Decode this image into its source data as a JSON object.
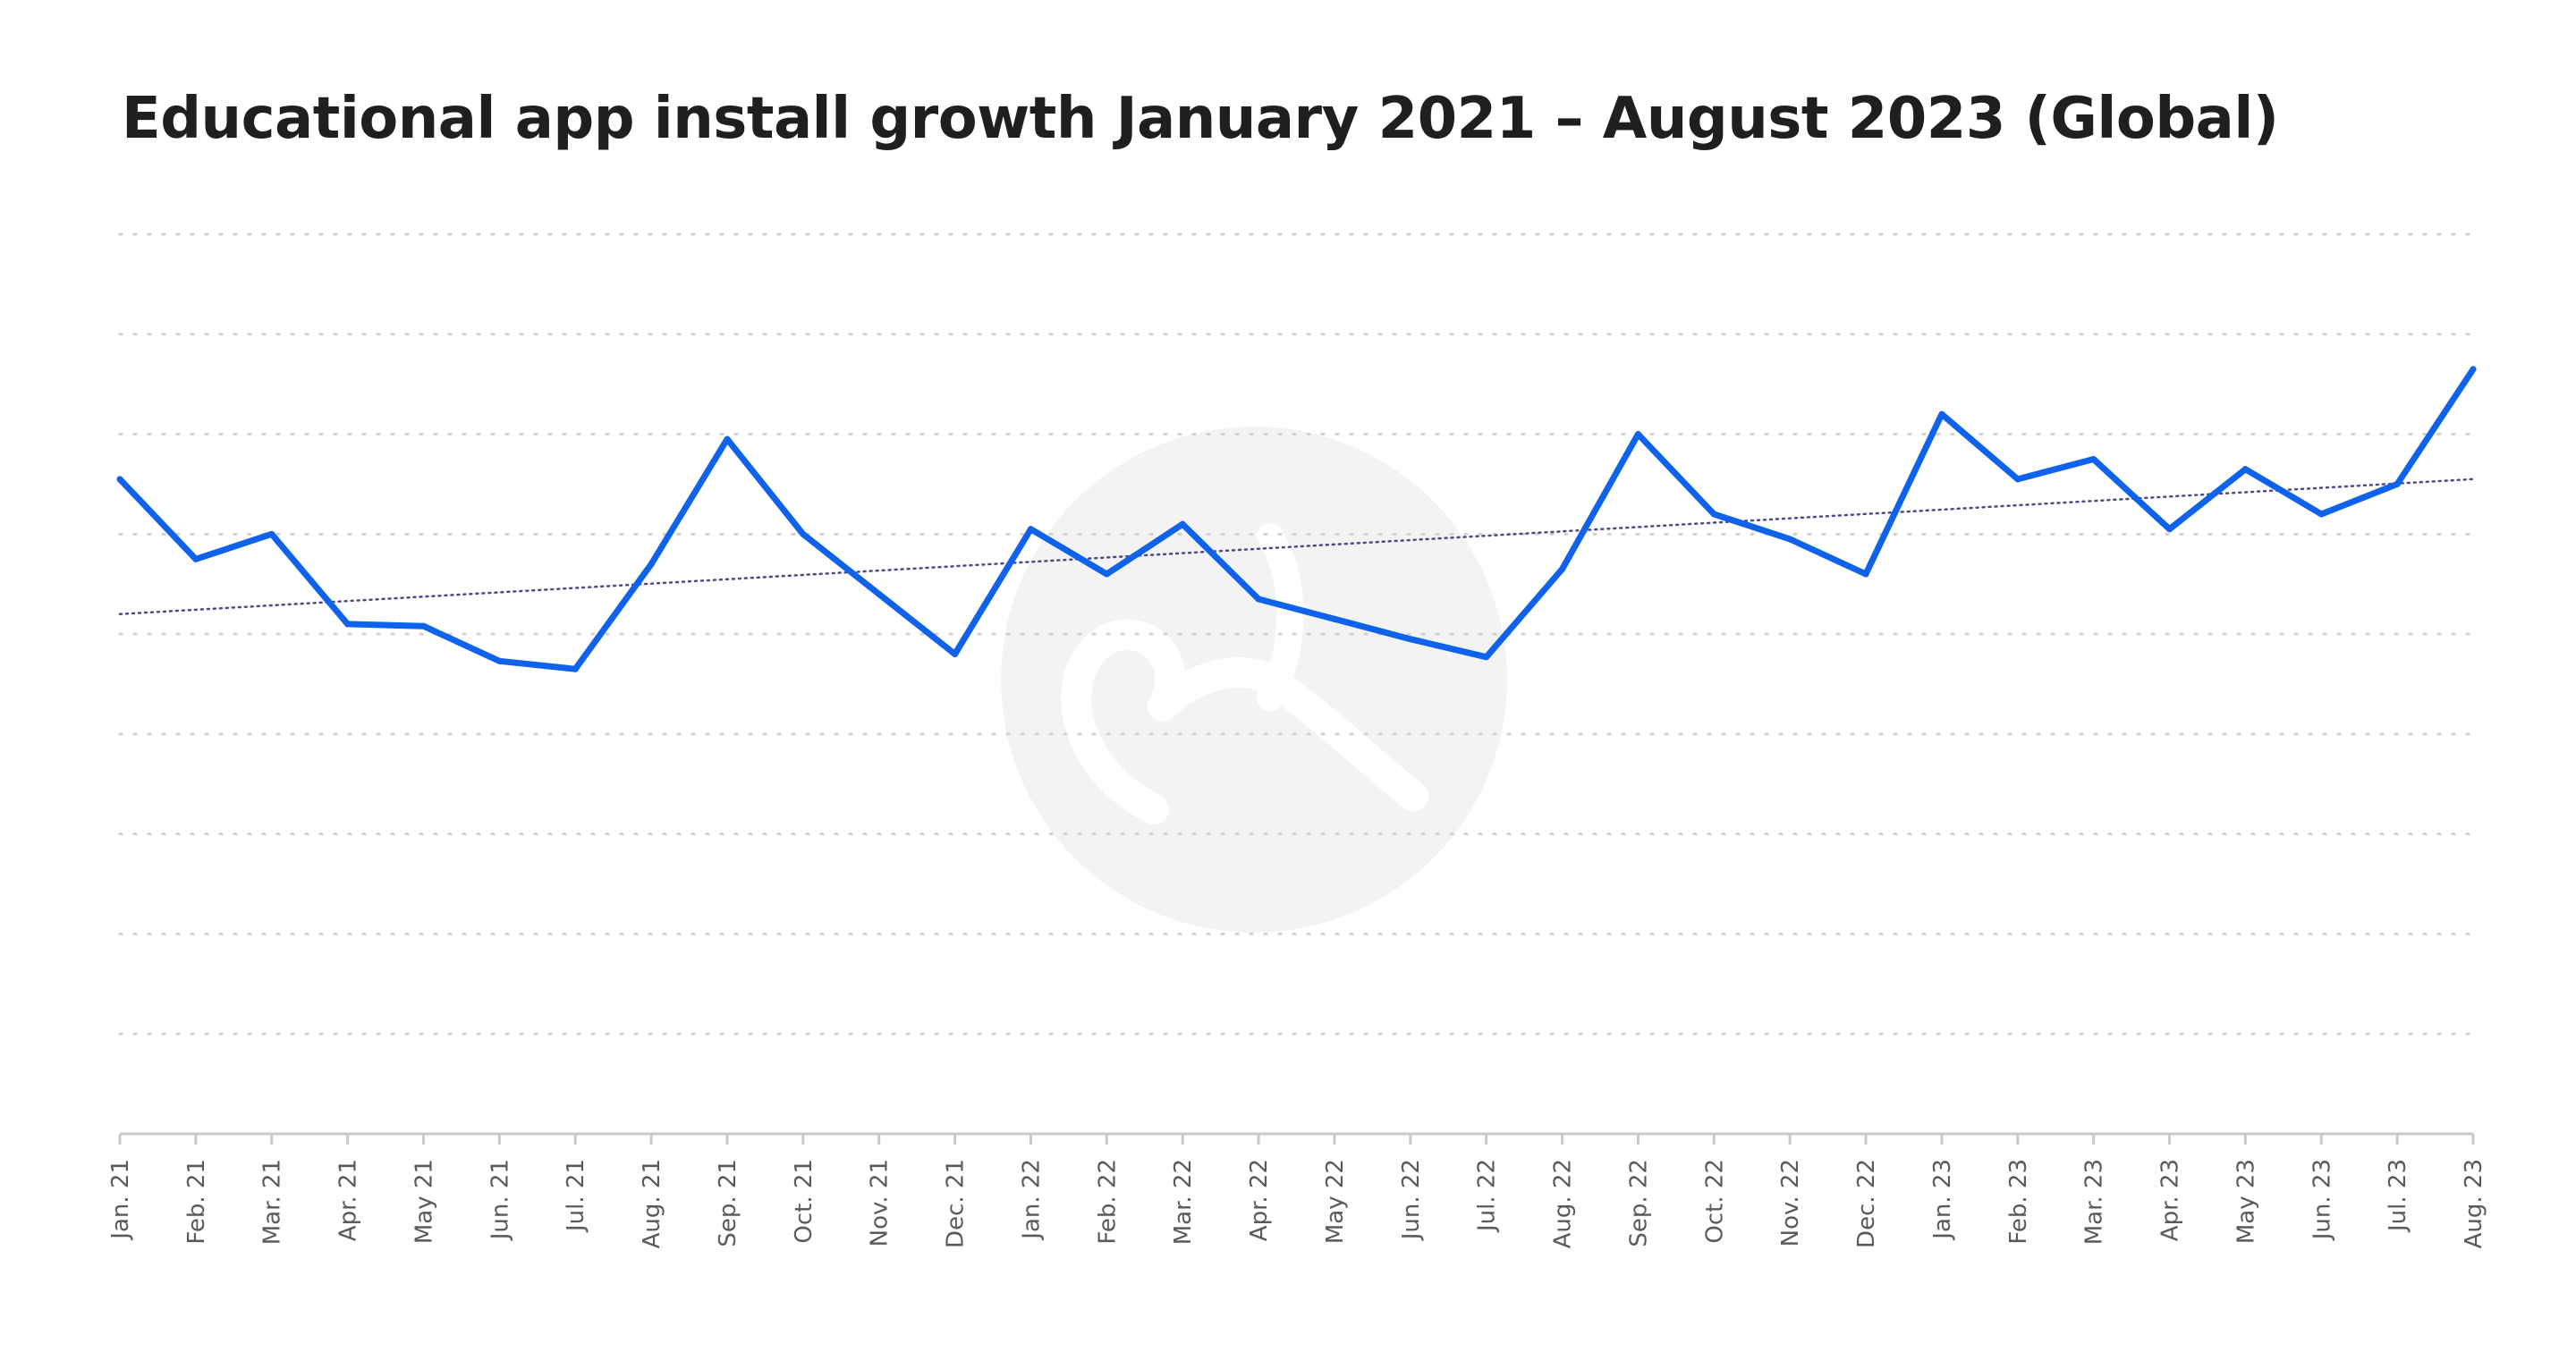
{
  "chart_data": {
    "type": "line",
    "title": "Educational app install growth January 2021 – August 2023 (Global)",
    "xlabel": "",
    "ylabel": "",
    "categories": [
      "Jan. 21",
      "Feb. 21",
      "Mar. 21",
      "Apr. 21",
      "May 21",
      "Jun. 21",
      "Jul. 21",
      "Aug. 21",
      "Sep. 21",
      "Oct. 21",
      "Nov. 21",
      "Dec. 21",
      "Jan. 22",
      "Feb. 22",
      "Mar. 22",
      "Apr. 22",
      "May 22",
      "Jun. 22",
      "Jul. 22",
      "Aug. 22",
      "Sep. 22",
      "Oct. 22",
      "Nov. 22",
      "Dec. 22",
      "Jan. 23",
      "Feb. 23",
      "Mar. 23",
      "Apr. 23",
      "May 23",
      "Jun. 23",
      "Jul. 23",
      "Aug. 23"
    ],
    "series": [
      {
        "values": [
          6.55,
          5.75,
          6.0,
          5.1,
          5.08,
          4.73,
          4.65,
          5.7,
          6.95,
          6.0,
          5.4,
          4.8,
          6.05,
          5.6,
          6.1,
          5.35,
          5.15,
          4.95,
          4.77,
          5.65,
          7.0,
          6.2,
          5.95,
          5.6,
          7.2,
          6.55,
          6.75,
          6.05,
          6.65,
          6.2,
          6.5,
          7.65
        ]
      }
    ],
    "trendline": {
      "start": 5.2,
      "end": 6.55,
      "style": "dotted"
    },
    "ylim": [
      0,
      9
    ],
    "yticks": [
      0,
      1,
      2,
      3,
      4,
      5,
      6,
      7,
      8,
      9
    ],
    "ytick_labels_visible": false,
    "grid": true,
    "legend": "none",
    "colors": {
      "line": "#0f62eb",
      "trendline": "#4b4a8a",
      "grid": "#cfcfcf",
      "axis": "#c9c9c9",
      "title": "#1f1f1f",
      "watermark": "#f3f3f3"
    }
  },
  "watermark": {
    "icon": "logo-watermark-icon"
  }
}
